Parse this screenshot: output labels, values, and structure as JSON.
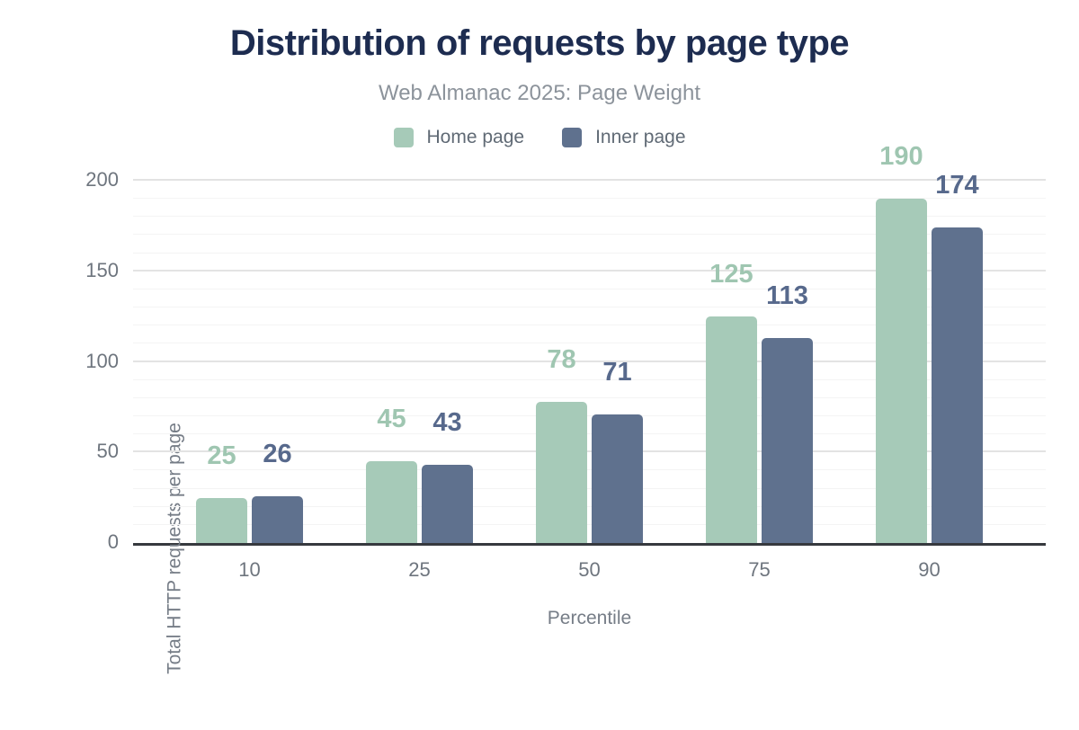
{
  "header": {
    "title": "Distribution of requests by page type",
    "subtitle": "Web Almanac 2025: Page Weight"
  },
  "axes": {
    "x_title": "Percentile",
    "y_title": "Total HTTP requests per page"
  },
  "colors": {
    "title": "#1d2c50",
    "subtitle": "#8c939b",
    "axis_line": "#36393e",
    "tick_text": "#6e757e",
    "gridline_major": "#e3e3e3",
    "gridline_minor": "#f4f4f4",
    "home_page_green": "#a6cab8",
    "inner_page_blue": "#5f718e"
  },
  "chart_data": {
    "type": "bar",
    "title": "Distribution of requests by page type",
    "subtitle": "Web Almanac 2025: Page Weight",
    "categories": [
      "10",
      "25",
      "50",
      "75",
      "90"
    ],
    "series": [
      {
        "name": "Home page",
        "color": "#a6cab8",
        "label_color": "#9fc6b1",
        "values": [
          25,
          45,
          78,
          125,
          190
        ]
      },
      {
        "name": "Inner page",
        "color": "#5f718e",
        "label_color": "#57698c",
        "values": [
          26,
          43,
          71,
          113,
          174
        ]
      }
    ],
    "xlabel": "Percentile",
    "ylabel": "Total HTTP requests per page",
    "ylim": [
      0,
      200
    ],
    "yticks": [
      0,
      50,
      100,
      150,
      200
    ],
    "grid": {
      "minor_step": 10,
      "major_step": 50
    },
    "legend_position": "top",
    "bar_labels_shown": true
  }
}
